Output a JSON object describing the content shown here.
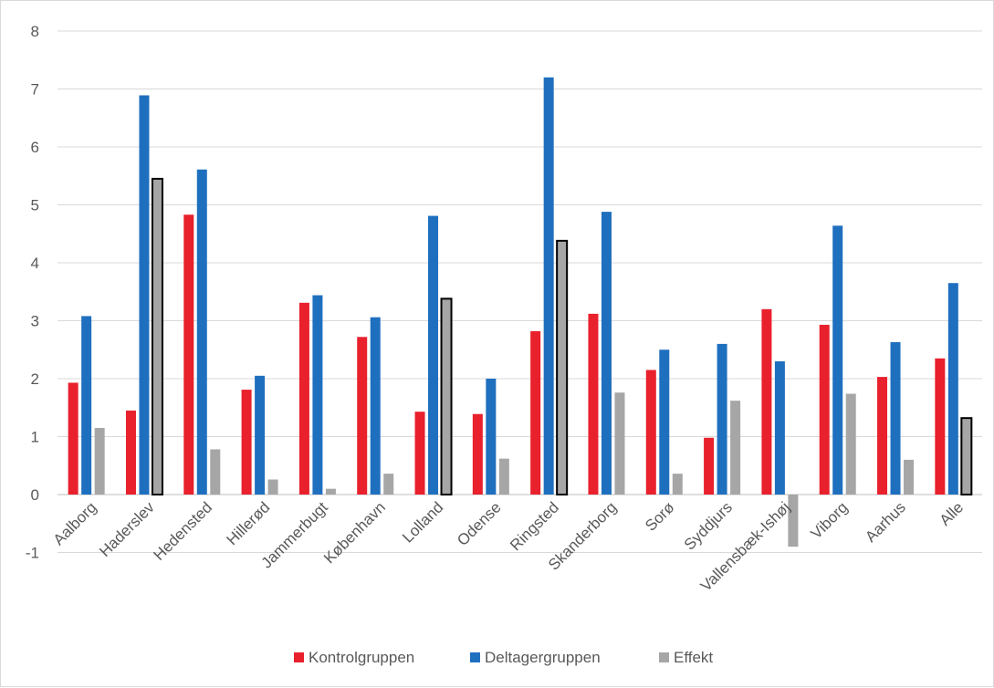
{
  "chart_data": {
    "type": "bar",
    "title": "",
    "xlabel": "",
    "ylabel": "",
    "ylim": [
      -1,
      8
    ],
    "yticks": [
      -1,
      0,
      1,
      2,
      3,
      4,
      5,
      6,
      7,
      8
    ],
    "grid": true,
    "legend_position": "bottom",
    "categories": [
      "Aalborg",
      "Haderslev",
      "Hedensted",
      "Hillerød",
      "Jammerbugt",
      "København",
      "Lolland",
      "Odense",
      "Ringsted",
      "Skanderborg",
      "Sorø",
      "Syddjurs",
      "Vallensbæk-Ishøj",
      "Viborg",
      "Aarhus",
      "Alle"
    ],
    "series": [
      {
        "name": "Kontrolgruppen",
        "color": "#e8212c",
        "values": [
          1.93,
          1.45,
          4.83,
          1.81,
          3.31,
          2.72,
          1.43,
          1.39,
          2.82,
          3.12,
          2.15,
          0.98,
          3.2,
          2.93,
          2.03,
          2.35
        ]
      },
      {
        "name": "Deltagergruppen",
        "color": "#1f6fbf",
        "values": [
          3.08,
          6.89,
          5.61,
          2.05,
          3.44,
          3.06,
          4.81,
          2.0,
          7.2,
          4.88,
          2.5,
          2.6,
          2.3,
          4.64,
          2.63,
          3.65
        ]
      },
      {
        "name": "Effekt",
        "color": "#a6a6a6",
        "values": [
          1.15,
          5.45,
          0.78,
          0.26,
          0.1,
          0.36,
          3.38,
          0.62,
          4.38,
          1.76,
          0.36,
          1.62,
          -0.9,
          1.74,
          0.6,
          1.32
        ]
      }
    ],
    "highlighted": [
      "Haderslev",
      "Lolland",
      "Ringsted",
      "Alle"
    ]
  }
}
